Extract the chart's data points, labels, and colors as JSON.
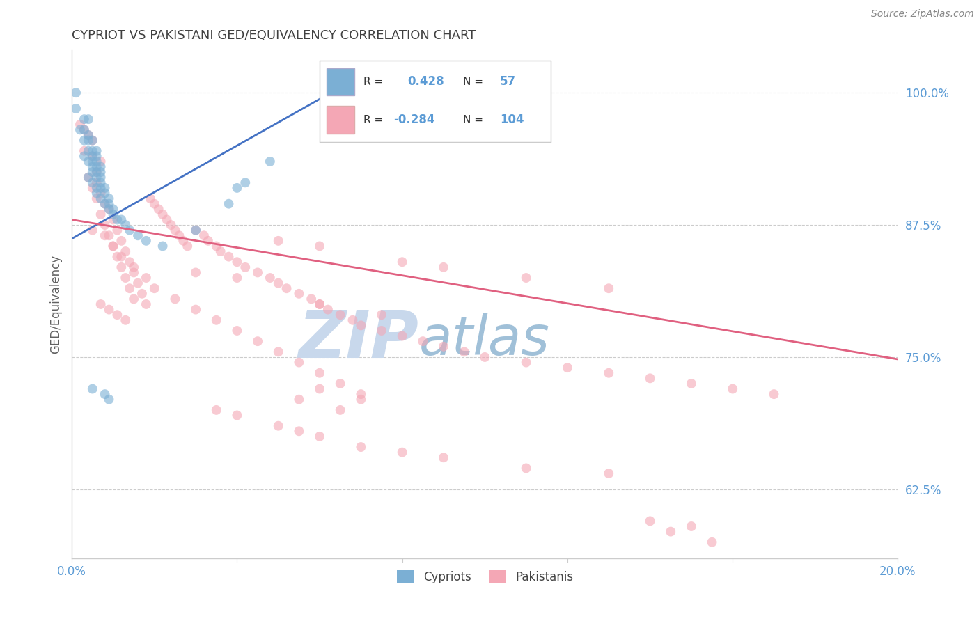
{
  "title": "CYPRIOT VS PAKISTANI GED/EQUIVALENCY CORRELATION CHART",
  "source_text": "Source: ZipAtlas.com",
  "ylabel": "GED/Equivalency",
  "xlim": [
    0.0,
    0.2
  ],
  "ylim": [
    0.56,
    1.04
  ],
  "xticks": [
    0.0,
    0.04,
    0.08,
    0.12,
    0.16,
    0.2
  ],
  "xticklabels": [
    "0.0%",
    "",
    "",
    "",
    "",
    "20.0%"
  ],
  "yticks": [
    0.625,
    0.75,
    0.875,
    1.0
  ],
  "yticklabels": [
    "62.5%",
    "75.0%",
    "87.5%",
    "100.0%"
  ],
  "cypriot_color": "#7bafd4",
  "pakistani_color": "#f4a7b5",
  "cypriot_line_color": "#4472c4",
  "pakistani_line_color": "#e06080",
  "cypriot_R": 0.428,
  "cypriot_N": 57,
  "pakistani_R": -0.284,
  "pakistani_N": 104,
  "legend_label_cypriot": "Cypriots",
  "legend_label_pakistani": "Pakistanis",
  "watermark_zip": "ZIP",
  "watermark_atlas": "atlas",
  "watermark_color_zip": "#c8d8ec",
  "watermark_color_atlas": "#a0c0d8",
  "background_color": "#ffffff",
  "grid_color": "#cccccc",
  "title_color": "#404040",
  "axis_label_color": "#606060",
  "tick_label_color": "#5b9bd5",
  "cypriot_line_x": [
    0.0,
    0.065
  ],
  "cypriot_line_y": [
    0.862,
    1.005
  ],
  "pakistani_line_x": [
    0.0,
    0.2
  ],
  "pakistani_line_y": [
    0.88,
    0.748
  ],
  "cypriot_points": [
    [
      0.001,
      1.0
    ],
    [
      0.001,
      0.985
    ],
    [
      0.003,
      0.975
    ],
    [
      0.004,
      0.975
    ],
    [
      0.002,
      0.965
    ],
    [
      0.003,
      0.965
    ],
    [
      0.004,
      0.96
    ],
    [
      0.003,
      0.955
    ],
    [
      0.004,
      0.955
    ],
    [
      0.005,
      0.955
    ],
    [
      0.004,
      0.945
    ],
    [
      0.005,
      0.945
    ],
    [
      0.006,
      0.945
    ],
    [
      0.003,
      0.94
    ],
    [
      0.005,
      0.94
    ],
    [
      0.006,
      0.94
    ],
    [
      0.004,
      0.935
    ],
    [
      0.005,
      0.935
    ],
    [
      0.006,
      0.935
    ],
    [
      0.005,
      0.93
    ],
    [
      0.006,
      0.93
    ],
    [
      0.007,
      0.93
    ],
    [
      0.005,
      0.925
    ],
    [
      0.006,
      0.925
    ],
    [
      0.007,
      0.925
    ],
    [
      0.004,
      0.92
    ],
    [
      0.006,
      0.92
    ],
    [
      0.007,
      0.92
    ],
    [
      0.005,
      0.915
    ],
    [
      0.007,
      0.915
    ],
    [
      0.006,
      0.91
    ],
    [
      0.007,
      0.91
    ],
    [
      0.008,
      0.91
    ],
    [
      0.006,
      0.905
    ],
    [
      0.008,
      0.905
    ],
    [
      0.007,
      0.9
    ],
    [
      0.009,
      0.9
    ],
    [
      0.008,
      0.895
    ],
    [
      0.009,
      0.895
    ],
    [
      0.009,
      0.89
    ],
    [
      0.01,
      0.89
    ],
    [
      0.01,
      0.885
    ],
    [
      0.011,
      0.88
    ],
    [
      0.012,
      0.88
    ],
    [
      0.013,
      0.875
    ],
    [
      0.014,
      0.87
    ],
    [
      0.016,
      0.865
    ],
    [
      0.018,
      0.86
    ],
    [
      0.022,
      0.855
    ],
    [
      0.03,
      0.87
    ],
    [
      0.038,
      0.895
    ],
    [
      0.04,
      0.91
    ],
    [
      0.042,
      0.915
    ],
    [
      0.048,
      0.935
    ],
    [
      0.005,
      0.72
    ],
    [
      0.008,
      0.715
    ],
    [
      0.009,
      0.71
    ]
  ],
  "pakistani_points": [
    [
      0.002,
      0.97
    ],
    [
      0.003,
      0.965
    ],
    [
      0.004,
      0.96
    ],
    [
      0.005,
      0.955
    ],
    [
      0.003,
      0.945
    ],
    [
      0.005,
      0.94
    ],
    [
      0.007,
      0.935
    ],
    [
      0.006,
      0.925
    ],
    [
      0.004,
      0.92
    ],
    [
      0.006,
      0.915
    ],
    [
      0.005,
      0.91
    ],
    [
      0.007,
      0.905
    ],
    [
      0.006,
      0.9
    ],
    [
      0.008,
      0.895
    ],
    [
      0.009,
      0.89
    ],
    [
      0.007,
      0.885
    ],
    [
      0.01,
      0.88
    ],
    [
      0.008,
      0.875
    ],
    [
      0.011,
      0.87
    ],
    [
      0.009,
      0.865
    ],
    [
      0.012,
      0.86
    ],
    [
      0.01,
      0.855
    ],
    [
      0.013,
      0.85
    ],
    [
      0.011,
      0.845
    ],
    [
      0.014,
      0.84
    ],
    [
      0.012,
      0.835
    ],
    [
      0.015,
      0.83
    ],
    [
      0.013,
      0.825
    ],
    [
      0.016,
      0.82
    ],
    [
      0.014,
      0.815
    ],
    [
      0.017,
      0.81
    ],
    [
      0.015,
      0.805
    ],
    [
      0.018,
      0.8
    ],
    [
      0.019,
      0.9
    ],
    [
      0.02,
      0.895
    ],
    [
      0.021,
      0.89
    ],
    [
      0.022,
      0.885
    ],
    [
      0.023,
      0.88
    ],
    [
      0.024,
      0.875
    ],
    [
      0.025,
      0.87
    ],
    [
      0.026,
      0.865
    ],
    [
      0.027,
      0.86
    ],
    [
      0.028,
      0.855
    ],
    [
      0.03,
      0.87
    ],
    [
      0.032,
      0.865
    ],
    [
      0.033,
      0.86
    ],
    [
      0.035,
      0.855
    ],
    [
      0.036,
      0.85
    ],
    [
      0.038,
      0.845
    ],
    [
      0.04,
      0.84
    ],
    [
      0.042,
      0.835
    ],
    [
      0.045,
      0.83
    ],
    [
      0.048,
      0.825
    ],
    [
      0.05,
      0.82
    ],
    [
      0.052,
      0.815
    ],
    [
      0.055,
      0.81
    ],
    [
      0.058,
      0.805
    ],
    [
      0.06,
      0.8
    ],
    [
      0.062,
      0.795
    ],
    [
      0.065,
      0.79
    ],
    [
      0.068,
      0.785
    ],
    [
      0.07,
      0.78
    ],
    [
      0.075,
      0.775
    ],
    [
      0.08,
      0.77
    ],
    [
      0.085,
      0.765
    ],
    [
      0.09,
      0.76
    ],
    [
      0.095,
      0.755
    ],
    [
      0.1,
      0.75
    ],
    [
      0.11,
      0.745
    ],
    [
      0.12,
      0.74
    ],
    [
      0.13,
      0.735
    ],
    [
      0.14,
      0.73
    ],
    [
      0.15,
      0.725
    ],
    [
      0.16,
      0.72
    ],
    [
      0.17,
      0.715
    ],
    [
      0.05,
      0.86
    ],
    [
      0.06,
      0.855
    ],
    [
      0.08,
      0.84
    ],
    [
      0.09,
      0.835
    ],
    [
      0.11,
      0.825
    ],
    [
      0.13,
      0.815
    ],
    [
      0.03,
      0.83
    ],
    [
      0.04,
      0.825
    ],
    [
      0.06,
      0.8
    ],
    [
      0.075,
      0.79
    ],
    [
      0.005,
      0.87
    ],
    [
      0.008,
      0.865
    ],
    [
      0.01,
      0.855
    ],
    [
      0.012,
      0.845
    ],
    [
      0.015,
      0.835
    ],
    [
      0.018,
      0.825
    ],
    [
      0.02,
      0.815
    ],
    [
      0.025,
      0.805
    ],
    [
      0.03,
      0.795
    ],
    [
      0.035,
      0.785
    ],
    [
      0.04,
      0.775
    ],
    [
      0.045,
      0.765
    ],
    [
      0.05,
      0.755
    ],
    [
      0.055,
      0.745
    ],
    [
      0.06,
      0.735
    ],
    [
      0.065,
      0.725
    ],
    [
      0.07,
      0.715
    ],
    [
      0.035,
      0.7
    ],
    [
      0.04,
      0.695
    ],
    [
      0.05,
      0.685
    ],
    [
      0.055,
      0.68
    ],
    [
      0.06,
      0.675
    ],
    [
      0.07,
      0.665
    ],
    [
      0.08,
      0.66
    ],
    [
      0.09,
      0.655
    ],
    [
      0.11,
      0.645
    ],
    [
      0.13,
      0.64
    ],
    [
      0.145,
      0.585
    ],
    [
      0.155,
      0.575
    ],
    [
      0.055,
      0.71
    ],
    [
      0.065,
      0.7
    ],
    [
      0.14,
      0.595
    ],
    [
      0.15,
      0.59
    ],
    [
      0.007,
      0.8
    ],
    [
      0.009,
      0.795
    ],
    [
      0.011,
      0.79
    ],
    [
      0.013,
      0.785
    ],
    [
      0.06,
      0.72
    ],
    [
      0.07,
      0.71
    ]
  ]
}
